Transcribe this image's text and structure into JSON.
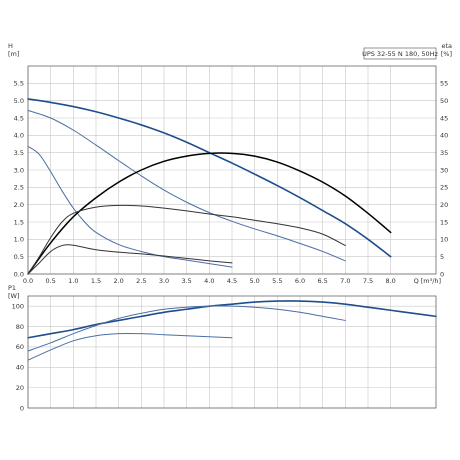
{
  "chart_data": [
    {
      "type": "line",
      "title": "",
      "legend": "UPS 32-55 N 180, 50Hz",
      "xlabel": "Q [m³/h]",
      "ylabel_left": "H\n[m]",
      "ylabel_right": "eta\n[%]",
      "xlim": [
        0,
        9
      ],
      "ylim": [
        0,
        6
      ],
      "ylim_right": [
        0,
        60
      ],
      "x_ticks": [
        "0.0",
        "0.5",
        "1.0",
        "1.5",
        "2.0",
        "2.5",
        "3.0",
        "3.5",
        "4.0",
        "4.5",
        "5.0",
        "5.5",
        "6.0",
        "6.5",
        "7.0",
        "7.5",
        "8.0"
      ],
      "y_ticks": [
        "0.0",
        "0.5",
        "1.0",
        "1.5",
        "2.0",
        "2.5",
        "3.0",
        "3.5",
        "4.0",
        "4.5",
        "5.0",
        "5.5"
      ],
      "y_ticks_right": [
        "0",
        "5",
        "10",
        "15",
        "20",
        "25",
        "30",
        "35",
        "40",
        "45",
        "50",
        "55"
      ],
      "grid": true,
      "series": [
        {
          "color": "#1f4e8c",
          "width": 1.6,
          "axis": "left",
          "x": [
            0,
            0.5,
            1,
            1.5,
            2,
            2.5,
            3,
            3.5,
            4,
            4.5,
            5,
            5.5,
            6,
            6.5,
            7,
            7.5,
            8
          ],
          "y": [
            5.05,
            4.95,
            4.83,
            4.68,
            4.5,
            4.3,
            4.07,
            3.8,
            3.5,
            3.2,
            2.88,
            2.55,
            2.2,
            1.83,
            1.45,
            1.0,
            0.5
          ]
        },
        {
          "color": "#4a6fa5",
          "width": 1.0,
          "axis": "left",
          "x": [
            0,
            0.5,
            1,
            1.5,
            2,
            2.5,
            3,
            3.5,
            4,
            4.5,
            5,
            5.5,
            6,
            6.5,
            7
          ],
          "y": [
            4.72,
            4.5,
            4.15,
            3.72,
            3.27,
            2.83,
            2.42,
            2.07,
            1.77,
            1.52,
            1.3,
            1.1,
            0.88,
            0.65,
            0.38
          ]
        },
        {
          "color": "#4a6fa5",
          "width": 1.0,
          "axis": "left",
          "x": [
            0,
            0.25,
            0.5,
            0.75,
            1,
            1.25,
            1.5,
            2,
            2.5,
            3,
            3.5,
            4,
            4.5
          ],
          "y": [
            3.68,
            3.45,
            2.95,
            2.4,
            1.9,
            1.5,
            1.2,
            0.85,
            0.65,
            0.5,
            0.4,
            0.3,
            0.2
          ]
        },
        {
          "color": "#000000",
          "width": 1.5,
          "axis": "right",
          "x": [
            0,
            0.5,
            1,
            1.5,
            2,
            2.5,
            3,
            3.5,
            4,
            4.5,
            5,
            5.5,
            6,
            6.5,
            7,
            7.5,
            8
          ],
          "y": [
            0,
            9,
            16.5,
            22,
            26.5,
            30,
            32.5,
            34,
            34.8,
            34.8,
            34,
            32.3,
            29.7,
            26.5,
            22.5,
            17.5,
            12
          ]
        },
        {
          "color": "#333333",
          "width": 1.0,
          "axis": "right",
          "x": [
            0,
            0.25,
            0.5,
            0.75,
            1,
            1.5,
            2,
            2.5,
            3,
            3.5,
            4,
            4.5,
            5,
            5.5,
            6,
            6.5,
            7
          ],
          "y": [
            0,
            5,
            10.5,
            15,
            17.5,
            19.3,
            19.8,
            19.6,
            19,
            18.2,
            17.3,
            16.5,
            15.5,
            14.5,
            13.3,
            11.5,
            8.2
          ]
        },
        {
          "color": "#333333",
          "width": 1.0,
          "axis": "right",
          "x": [
            0,
            0.25,
            0.5,
            0.75,
            1,
            1.5,
            2,
            2.5,
            3,
            3.5,
            4,
            4.5
          ],
          "y": [
            0,
            3.2,
            6.5,
            8.2,
            8.3,
            7,
            6.3,
            5.8,
            5.2,
            4.5,
            3.8,
            3.2
          ]
        }
      ]
    },
    {
      "type": "line",
      "title": "",
      "xlabel": "",
      "ylabel_left": "P1\n[W]",
      "xlim": [
        0,
        9
      ],
      "ylim": [
        0,
        110
      ],
      "x_ticks": [],
      "y_ticks": [
        "0",
        "20",
        "40",
        "60",
        "80",
        "100"
      ],
      "grid": true,
      "series": [
        {
          "color": "#1f4e8c",
          "width": 1.6,
          "x": [
            0,
            0.5,
            1,
            1.5,
            2,
            2.5,
            3,
            3.5,
            4,
            4.5,
            5,
            5.5,
            6,
            6.5,
            7,
            7.5,
            8,
            8.5,
            9
          ],
          "y": [
            69,
            73,
            77,
            82,
            86,
            90,
            94,
            97,
            100,
            102,
            104,
            105,
            105,
            104,
            102,
            99,
            96,
            93,
            90
          ]
        },
        {
          "color": "#4a6fa5",
          "width": 1.0,
          "x": [
            0,
            0.5,
            1,
            1.5,
            2,
            2.5,
            3,
            3.5,
            4,
            4.5,
            5,
            5.5,
            6,
            6.5,
            7
          ],
          "y": [
            56,
            64,
            73,
            81,
            88,
            93,
            97,
            99,
            100,
            100,
            99,
            97,
            94,
            90,
            86
          ]
        },
        {
          "color": "#4a6fa5",
          "width": 1.0,
          "x": [
            0,
            0.5,
            1,
            1.5,
            2,
            2.5,
            3,
            3.5,
            4,
            4.5
          ],
          "y": [
            47,
            57,
            66,
            71,
            73,
            73,
            72,
            71,
            70,
            69
          ]
        }
      ]
    }
  ]
}
